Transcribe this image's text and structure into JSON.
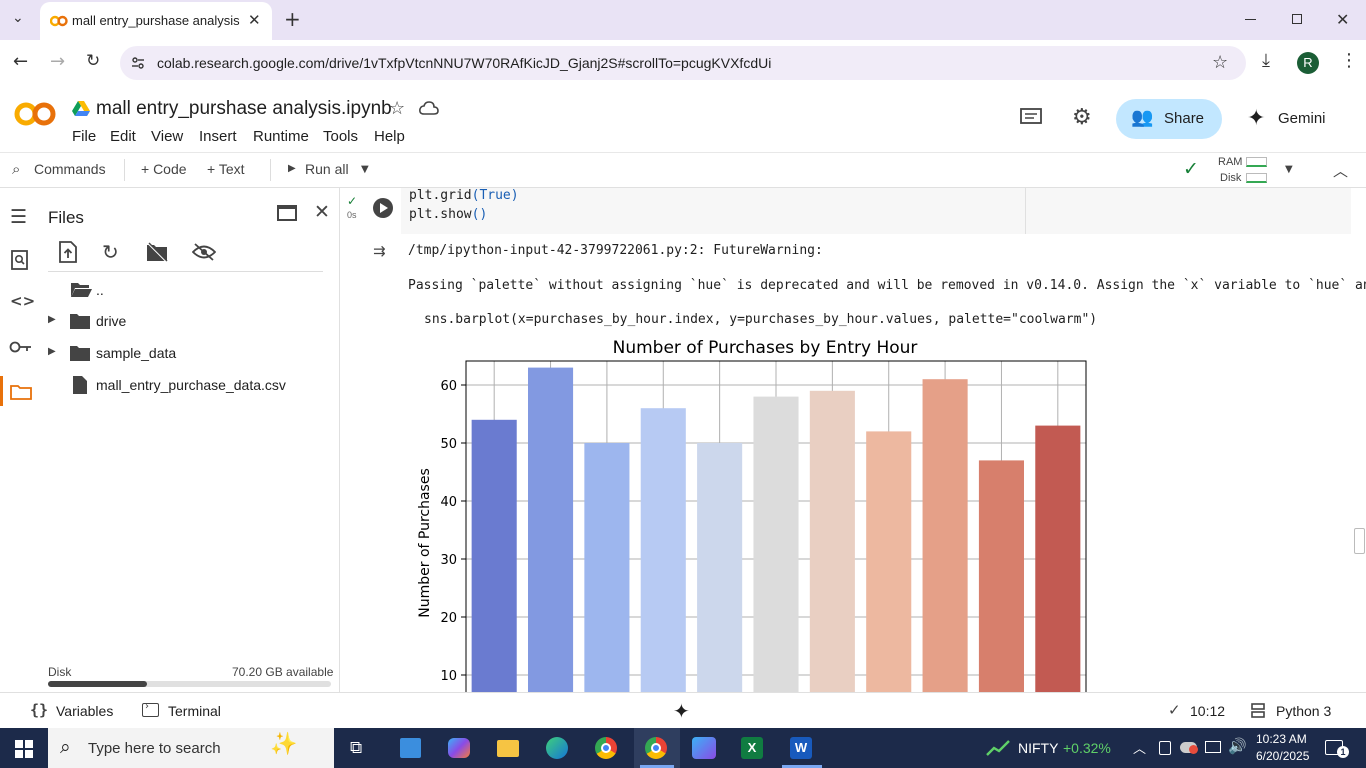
{
  "browser": {
    "tab_title": "mall entry_purshase analysis.ipy",
    "url": "colab.research.google.com/drive/1vTxfpVtcnNNU7W70RAfKicJD_Gjanj2S#scrollTo=pcugKVXfcdUi",
    "profile_initial": "R"
  },
  "colab": {
    "logo_text": "CO",
    "notebook_title": "mall entry_purshase analysis.ipynb",
    "menu": [
      "File",
      "Edit",
      "View",
      "Insert",
      "Runtime",
      "Tools",
      "Help"
    ],
    "share_label": "Share",
    "gemini_label": "Gemini"
  },
  "toolbar": {
    "commands_label": "Commands",
    "code_label": "+ Code",
    "text_label": "+ Text",
    "run_all_label": "Run all",
    "ram_label": "RAM",
    "disk_label": "Disk"
  },
  "files_panel": {
    "title": "Files",
    "items": [
      {
        "label": "..",
        "type": "folder-up"
      },
      {
        "label": "drive",
        "type": "folder"
      },
      {
        "label": "sample_data",
        "type": "folder"
      },
      {
        "label": "mall_entry_purchase_data.csv",
        "type": "file"
      }
    ],
    "disk_label": "Disk",
    "disk_available": "70.20 GB available",
    "disk_used_fraction": 0.35
  },
  "cell": {
    "run_status": "0s",
    "code_lines": [
      "plt.grid(True)",
      "plt.show()"
    ],
    "code_line1_fn": "plt.grid",
    "code_line1_arg": "(True)",
    "code_line2_fn": "plt.show",
    "code_line2_arg": "()"
  },
  "output": {
    "warning_path": "/tmp/ipython-input-42-3799722061.py:2: FutureWarning:",
    "warning_msg": "Passing `palette` without assigning `hue` is deprecated and will be removed in v0.14.0. Assign the `x` variable to `hue` and",
    "warning_code": "sns.barplot(x=purchases_by_hour.index, y=purchases_by_hour.values, palette=\"coolwarm\")"
  },
  "chart_data": {
    "type": "bar",
    "title": "Number of Purchases by Entry Hour",
    "ylabel": "Number of Purchases",
    "xlabel": "",
    "values": [
      54,
      63,
      50,
      56,
      50,
      58,
      59,
      52,
      61,
      47,
      53
    ],
    "colors": [
      "#6a7bd0",
      "#8299e1",
      "#9db6ee",
      "#b7caf3",
      "#ccd7ec",
      "#dcdcdc",
      "#e9cfc2",
      "#edb8a0",
      "#e5a088",
      "#d77f6c",
      "#c25a52"
    ],
    "y_ticks": [
      "60",
      "50",
      "40",
      "30",
      "20",
      "10"
    ],
    "y_visible_range": [
      9.5,
      65.5
    ],
    "grid": true
  },
  "statusbar": {
    "variables_label": "Variables",
    "terminal_label": "Terminal",
    "time_exec": "10:12",
    "kernel": "Python 3"
  },
  "taskbar": {
    "search_placeholder": "Type here to search",
    "nifty_label": "NIFTY",
    "nifty_change": "+0.32%",
    "time": "10:23 AM",
    "date": "6/20/2025",
    "notification_count": "1"
  }
}
